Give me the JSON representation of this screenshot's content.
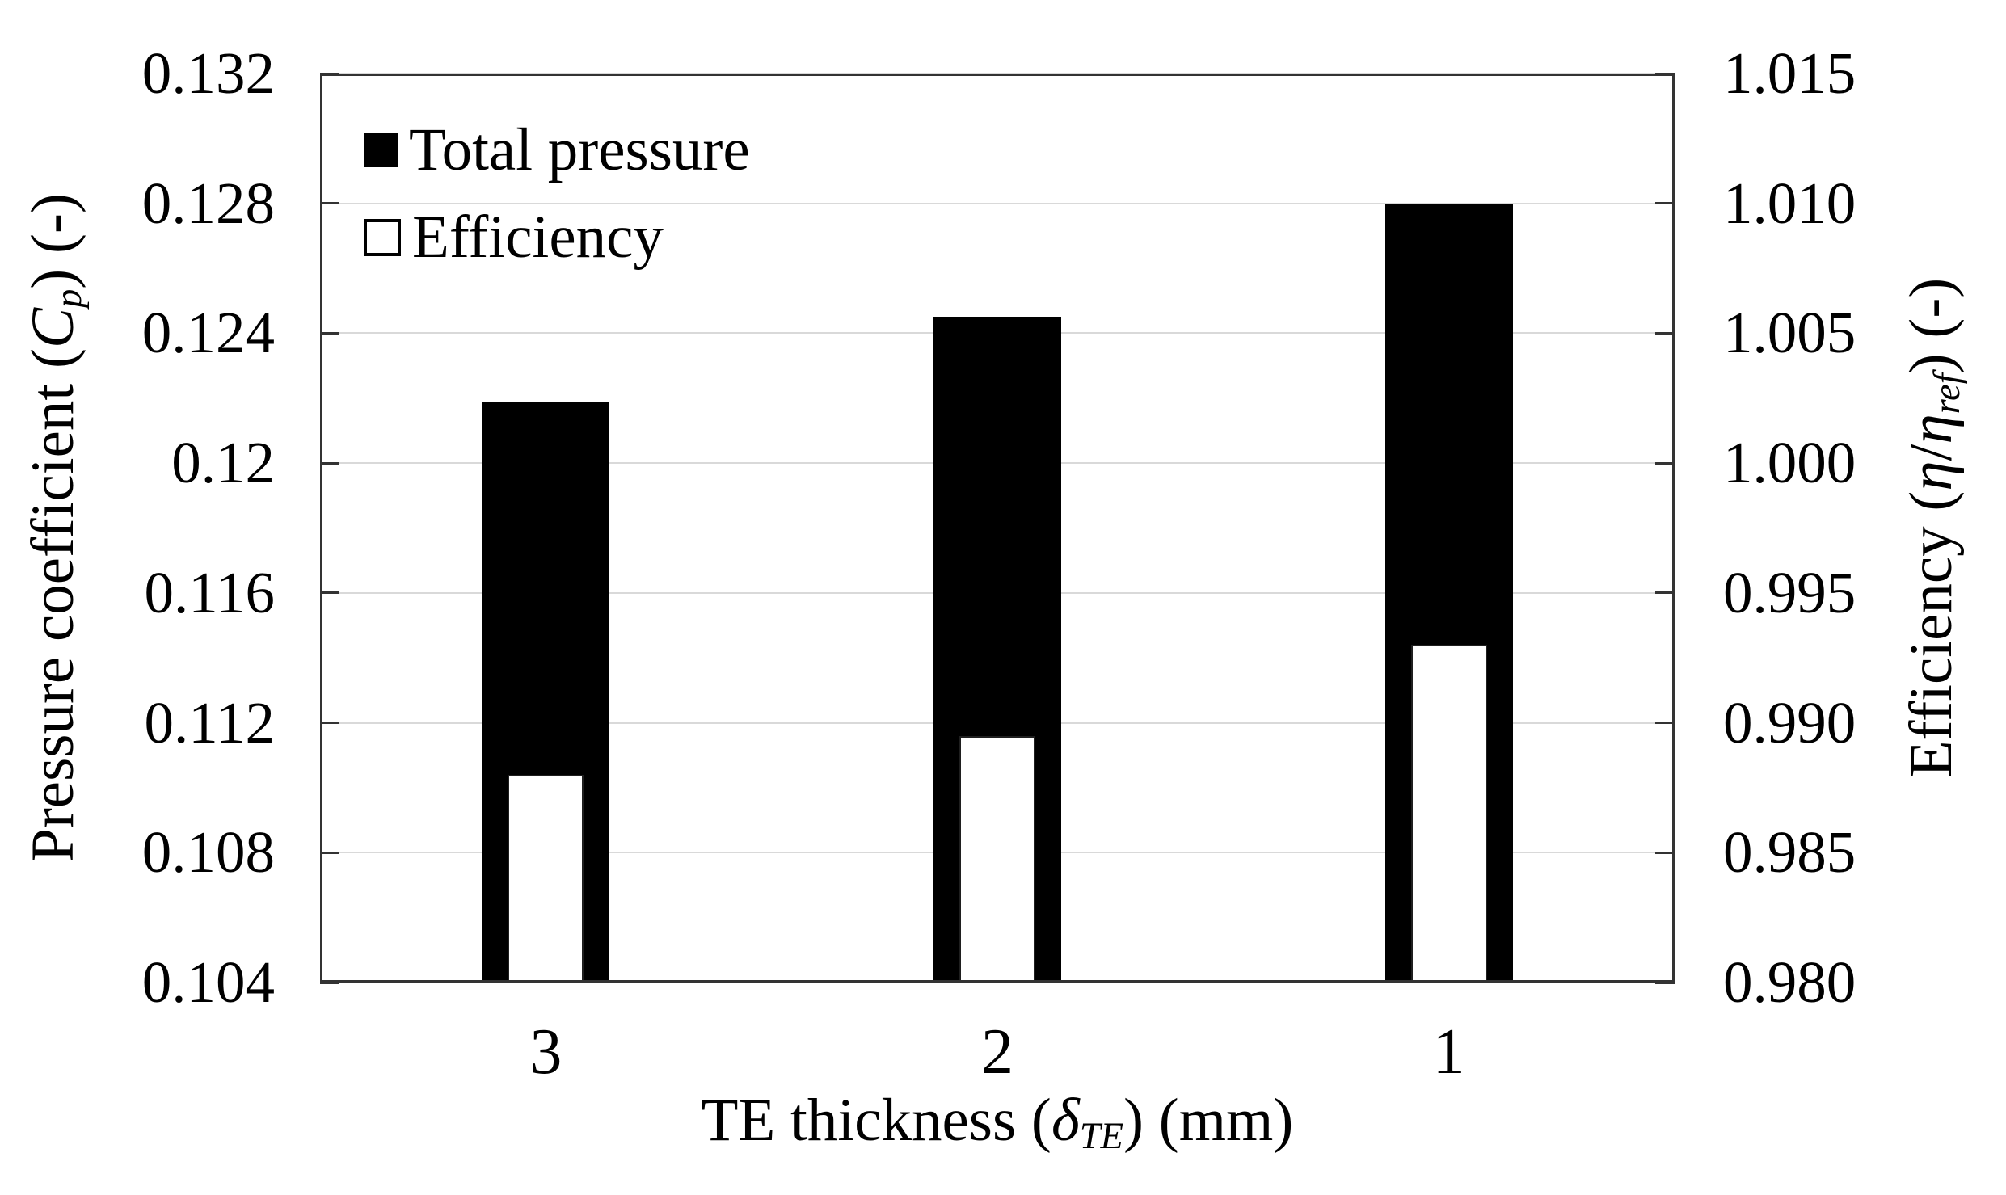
{
  "figure": {
    "background": "#ffffff",
    "title": ""
  },
  "chart_data": {
    "type": "bar",
    "title": "",
    "categories": [
      "3",
      "2",
      "1"
    ],
    "series": [
      {
        "name": "Total pressure",
        "axis": "left",
        "swatch": "filled-black",
        "color": "#000000",
        "values": [
          0.1219,
          0.1245,
          0.128
        ]
      },
      {
        "name": "Efficiency",
        "axis": "right",
        "swatch": "open-white",
        "color": "#ffffff",
        "values": [
          0.988,
          0.9895,
          0.993
        ]
      }
    ],
    "x_axis": {
      "title": "TE thickness (δTE) (mm)",
      "title_parts": [
        {
          "t": "TE thickness ("
        },
        {
          "t": "δ",
          "i": true
        },
        {
          "t": "TE",
          "i": true,
          "sub": true
        },
        {
          "t": ") (mm)"
        }
      ],
      "tick_labels": [
        "3",
        "2",
        "1"
      ]
    },
    "left_axis": {
      "title": "Pressure coefficient (Cp) (-)",
      "title_parts": [
        {
          "t": "Pressure coefficient ("
        },
        {
          "t": "C",
          "i": true
        },
        {
          "t": "p",
          "i": true,
          "sub": true
        },
        {
          "t": ") (-)"
        }
      ],
      "min": 0.104,
      "max": 0.132,
      "tick_interval": 0.004,
      "ticks": [
        0.132,
        0.128,
        0.124,
        0.12,
        0.116,
        0.112,
        0.108,
        0.104
      ],
      "tick_labels": [
        "0.132",
        "0.128",
        "0.124",
        "0.12",
        "0.116",
        "0.112",
        "0.108",
        "0.104"
      ]
    },
    "right_axis": {
      "title": "Efficiency (η/ηref) (-)",
      "title_parts": [
        {
          "t": "Efficiency ("
        },
        {
          "t": "η",
          "i": true
        },
        {
          "t": "/"
        },
        {
          "t": "η",
          "i": true
        },
        {
          "t": "ref",
          "i": true,
          "sub": true
        },
        {
          "t": ") (-)"
        }
      ],
      "min": 0.98,
      "max": 1.015,
      "tick_interval": 0.005,
      "ticks": [
        1.015,
        1.01,
        1.005,
        1.0,
        0.995,
        0.99,
        0.985,
        0.98
      ],
      "tick_labels": [
        "1.015",
        "1.010",
        "1.005",
        "1.000",
        "0.995",
        "0.990",
        "0.985",
        "0.980"
      ]
    },
    "legend": {
      "position": "top-left-inside",
      "entries": [
        {
          "label": "Total pressure",
          "swatch": "filled-black"
        },
        {
          "label": "Efficiency",
          "swatch": "open-white"
        }
      ]
    },
    "grid": {
      "horizontal": true,
      "vertical": false,
      "color": "#d9d9d9"
    },
    "colors": {
      "bar_fill": "#000000",
      "open_bar_fill": "#ffffff",
      "axis_line": "#333333",
      "text": "#000000"
    }
  }
}
